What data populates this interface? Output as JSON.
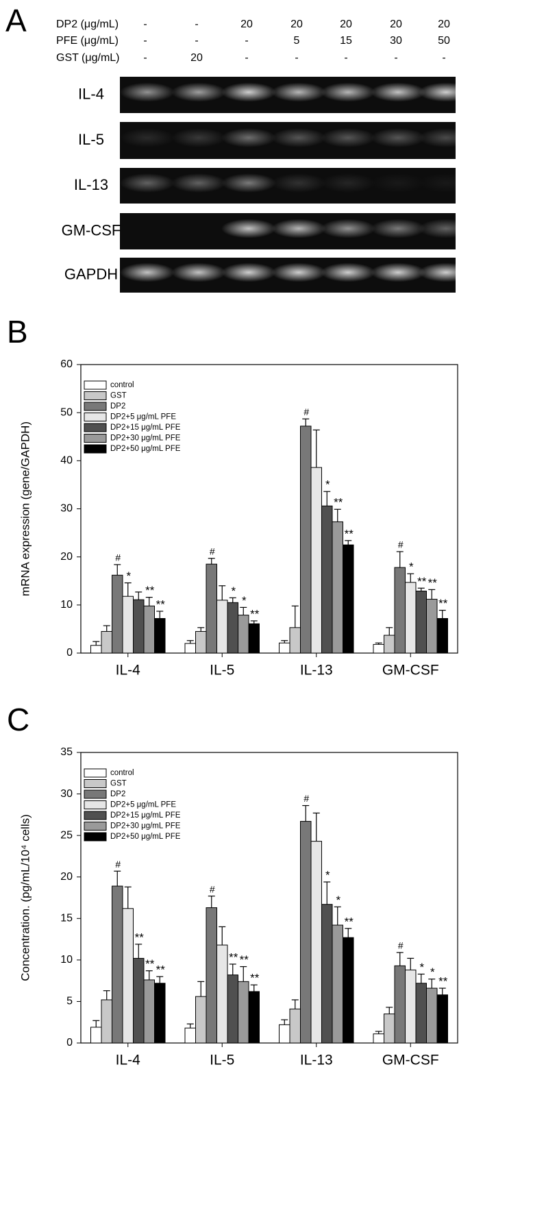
{
  "gel": {
    "panel": "A",
    "conditions": [
      {
        "label": "DP2 (μg/mL)",
        "values": [
          "-",
          "-",
          "20",
          "20",
          "20",
          "20",
          "20"
        ]
      },
      {
        "label": "PFE (μg/mL)",
        "values": [
          "-",
          "-",
          "-",
          "5",
          "15",
          "30",
          "50"
        ]
      },
      {
        "label": "GST (μg/mL)",
        "values": [
          "-",
          "20",
          "-",
          "-",
          "-",
          "-",
          "-"
        ]
      }
    ],
    "rows": [
      "IL-4",
      "IL-5",
      "IL-13",
      "GM-CSF",
      "GAPDH"
    ]
  },
  "chart_data": [
    {
      "type": "bar",
      "panel": "B",
      "y_label": "mRNA expression (gene/GAPDH)",
      "categories": [
        "IL-4",
        "IL-5",
        "IL-13",
        "GM-CSF"
      ],
      "ylim": [
        0,
        60
      ],
      "yticks": [
        0,
        10,
        20,
        30,
        40,
        50,
        60
      ],
      "legend": "upper left",
      "series": [
        {
          "name": "control",
          "color": "#ffffff",
          "values": [
            1.6,
            2.0,
            2.1,
            1.8
          ],
          "errors": [
            0.8,
            0.6,
            0.5,
            0.3
          ],
          "significance": [
            null,
            null,
            null,
            null
          ]
        },
        {
          "name": "GST",
          "color": "#c8c8c8",
          "values": [
            4.5,
            4.5,
            5.3,
            3.7
          ],
          "errors": [
            1.2,
            0.8,
            4.5,
            1.6
          ],
          "significance": [
            null,
            null,
            null,
            null
          ]
        },
        {
          "name": "DP2",
          "color": "#787878",
          "values": [
            16.2,
            18.5,
            47.2,
            17.8
          ],
          "errors": [
            2.2,
            1.2,
            1.5,
            3.3
          ],
          "significance": [
            "#",
            "#",
            "#",
            "#"
          ]
        },
        {
          "name": "DP2+5 μg/mL PFE",
          "color": "#e6e6e6",
          "values": [
            11.8,
            11.0,
            38.6,
            14.7
          ],
          "errors": [
            2.8,
            3.0,
            7.8,
            1.8
          ],
          "significance": [
            "*",
            null,
            null,
            "*"
          ]
        },
        {
          "name": "DP2+15 μg/mL PFE",
          "color": "#505050",
          "values": [
            11.1,
            10.5,
            30.6,
            12.9
          ],
          "errors": [
            1.6,
            1.0,
            3.0,
            0.6
          ],
          "significance": [
            null,
            "*",
            "*",
            "**"
          ]
        },
        {
          "name": "DP2+30 μg/mL PFE",
          "color": "#9a9a9a",
          "values": [
            9.8,
            7.9,
            27.3,
            11.2
          ],
          "errors": [
            1.8,
            1.6,
            2.6,
            2.0
          ],
          "significance": [
            "**",
            "*",
            "**",
            "**"
          ]
        },
        {
          "name": "DP2+50 μg/mL PFE",
          "color": "#000000",
          "values": [
            7.2,
            6.1,
            22.5,
            7.2
          ],
          "errors": [
            1.5,
            0.6,
            0.9,
            1.7
          ],
          "significance": [
            "**",
            "**",
            "**",
            "**"
          ]
        }
      ]
    },
    {
      "type": "bar",
      "panel": "C",
      "y_label": "Concentration. (pg/mL/10⁴ cells)",
      "categories": [
        "IL-4",
        "IL-5",
        "IL-13",
        "GM-CSF"
      ],
      "ylim": [
        0,
        35
      ],
      "yticks": [
        0,
        5,
        10,
        15,
        20,
        25,
        30,
        35
      ],
      "legend": "upper left",
      "series": [
        {
          "name": "control",
          "color": "#ffffff",
          "values": [
            1.9,
            1.8,
            2.2,
            1.1
          ],
          "errors": [
            0.8,
            0.5,
            0.6,
            0.3
          ],
          "significance": [
            null,
            null,
            null,
            null
          ]
        },
        {
          "name": "GST",
          "color": "#c8c8c8",
          "values": [
            5.2,
            5.6,
            4.1,
            3.5
          ],
          "errors": [
            1.1,
            1.8,
            1.1,
            0.8
          ],
          "significance": [
            null,
            null,
            null,
            null
          ]
        },
        {
          "name": "DP2",
          "color": "#787878",
          "values": [
            18.9,
            16.3,
            26.7,
            9.3
          ],
          "errors": [
            1.8,
            1.4,
            1.9,
            1.6
          ],
          "significance": [
            "#",
            "#",
            "#",
            "#"
          ]
        },
        {
          "name": "DP2+5 μg/mL PFE",
          "color": "#e6e6e6",
          "values": [
            16.2,
            11.8,
            24.3,
            8.8
          ],
          "errors": [
            2.6,
            2.2,
            3.4,
            1.4
          ],
          "significance": [
            null,
            null,
            null,
            null
          ]
        },
        {
          "name": "DP2+15 μg/mL PFE",
          "color": "#505050",
          "values": [
            10.2,
            8.2,
            16.7,
            7.2
          ],
          "errors": [
            1.7,
            1.3,
            2.7,
            1.1
          ],
          "significance": [
            "**",
            "**",
            "*",
            "*"
          ]
        },
        {
          "name": "DP2+30 μg/mL PFE",
          "color": "#9a9a9a",
          "values": [
            7.6,
            7.4,
            14.2,
            6.6
          ],
          "errors": [
            1.1,
            1.8,
            2.2,
            1.1
          ],
          "significance": [
            "**",
            "**",
            "*",
            "*"
          ]
        },
        {
          "name": "DP2+50 μg/mL PFE",
          "color": "#000000",
          "values": [
            7.2,
            6.2,
            12.7,
            5.8
          ],
          "errors": [
            0.8,
            0.8,
            1.1,
            0.8
          ],
          "significance": [
            "**",
            "**",
            "**",
            "**"
          ]
        }
      ]
    }
  ]
}
